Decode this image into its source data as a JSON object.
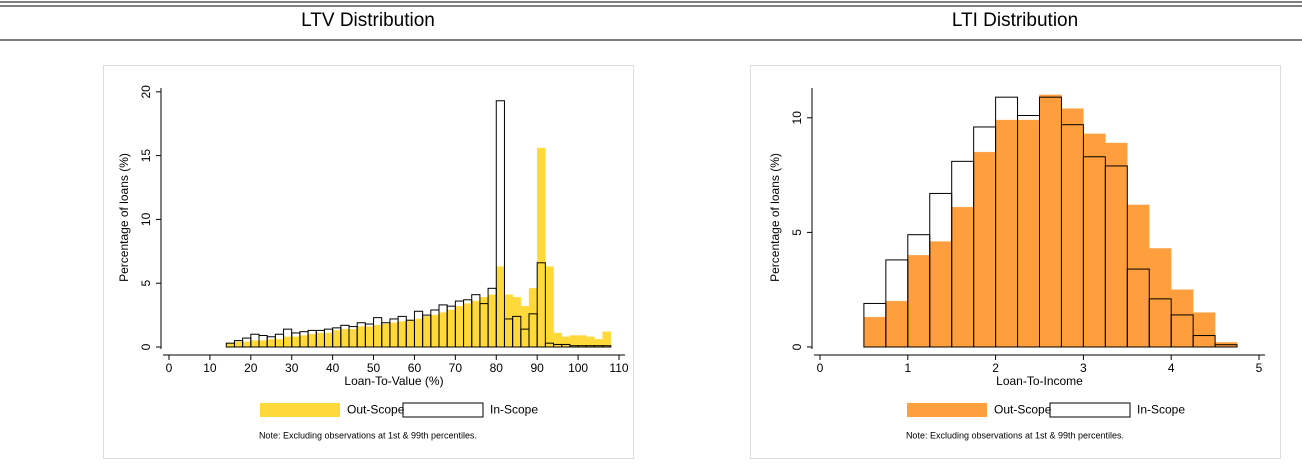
{
  "chart_data": [
    {
      "type": "histogram",
      "title": "LTV Distribution",
      "x_label": "Loan-To-Value (%)",
      "y_label": "Percentage of loans (%)",
      "note": "Note: Excluding observations at 1st & 99th percentiles.",
      "bins": [
        14,
        16,
        18,
        20,
        22,
        24,
        26,
        28,
        30,
        32,
        34,
        36,
        38,
        40,
        42,
        44,
        46,
        48,
        50,
        52,
        54,
        56,
        58,
        60,
        62,
        64,
        66,
        68,
        70,
        72,
        74,
        76,
        78,
        80,
        82,
        84,
        86,
        88,
        90,
        92,
        94,
        96,
        98,
        100,
        102,
        104,
        106,
        108
      ],
      "series": [
        {
          "name": "Out-Scope",
          "color": "#ffd93a",
          "values": [
            0.3,
            0.4,
            0.4,
            0.5,
            0.5,
            0.6,
            0.6,
            0.8,
            0.8,
            0.9,
            1.0,
            1.1,
            1.1,
            1.3,
            1.4,
            1.4,
            1.6,
            1.6,
            1.7,
            1.8,
            1.9,
            2.0,
            2.1,
            2.2,
            2.4,
            2.5,
            2.7,
            2.9,
            3.2,
            3.4,
            3.6,
            3.9,
            4.1,
            6.3,
            4.1,
            3.9,
            3.2,
            4.6,
            15.6,
            6.3,
            1.1,
            0.8,
            0.9,
            0.9,
            0.8,
            0.6,
            1.2
          ]
        },
        {
          "name": "In-Scope",
          "color": "#000000",
          "values": [
            0.3,
            0.5,
            0.7,
            1.0,
            0.9,
            0.8,
            1.0,
            1.4,
            1.1,
            1.2,
            1.3,
            1.3,
            1.4,
            1.5,
            1.7,
            1.6,
            1.9,
            1.8,
            2.3,
            1.9,
            2.2,
            2.4,
            2.1,
            2.8,
            2.5,
            2.9,
            3.3,
            3.2,
            3.6,
            3.7,
            4.1,
            3.4,
            4.6,
            19.3,
            2.2,
            2.4,
            1.4,
            2.6,
            6.6,
            0.3,
            0.2,
            0.2,
            0.1,
            0.1,
            0.1,
            0.1,
            0.1
          ]
        }
      ],
      "xlim": [
        0,
        110
      ],
      "xticks": [
        0,
        10,
        20,
        30,
        40,
        50,
        60,
        70,
        80,
        90,
        100,
        110
      ],
      "ylim": [
        0,
        20.3
      ],
      "yticks": [
        0,
        5,
        10,
        15,
        20
      ]
    },
    {
      "type": "histogram",
      "title": "LTI Distribution",
      "x_label": "Loan-To-Income",
      "y_label": "Percentage of loans (%)",
      "note": "Note: Excluding observations at 1st & 99th percentiles.",
      "bins": [
        0.5,
        0.75,
        1,
        1.25,
        1.5,
        1.75,
        2,
        2.25,
        2.5,
        2.75,
        3,
        3.25,
        3.5,
        3.75,
        4,
        4.25,
        4.5,
        4.75
      ],
      "series": [
        {
          "name": "Out-Scope",
          "color": "#ff9e3d",
          "values": [
            1.3,
            2.0,
            4.0,
            4.6,
            6.1,
            8.5,
            9.9,
            9.9,
            11.0,
            10.4,
            9.3,
            8.9,
            6.2,
            4.3,
            2.5,
            1.5,
            0.2
          ]
        },
        {
          "name": "In-Scope",
          "color": "#000000",
          "values": [
            1.9,
            3.8,
            4.9,
            6.7,
            8.1,
            9.6,
            10.9,
            10.1,
            10.9,
            9.7,
            8.3,
            7.9,
            3.4,
            2.1,
            1.4,
            0.5,
            0.1
          ]
        }
      ],
      "xlim": [
        0,
        5
      ],
      "xticks": [
        0,
        1,
        2,
        3,
        4,
        5
      ],
      "ylim": [
        0,
        11.3
      ],
      "yticks": [
        0,
        5,
        10
      ]
    }
  ]
}
